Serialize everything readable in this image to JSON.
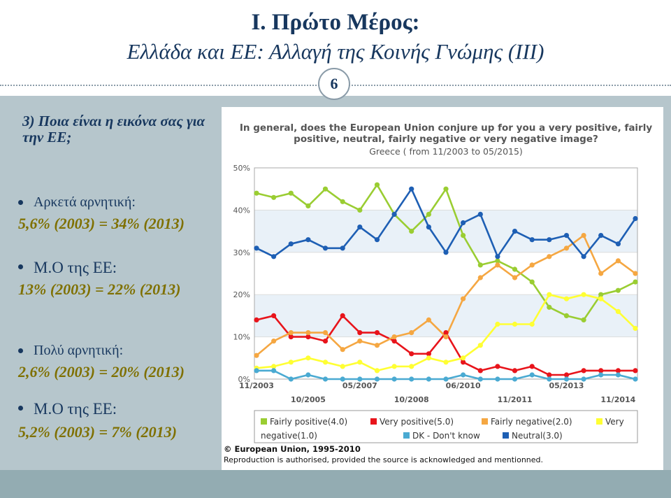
{
  "slide": {
    "title": "Ι. Πρώτο Μέρος:",
    "subtitle": "Ελλάδα και ΕΕ: Αλλαγή της Κοινής Γνώμης (ΙΙΙ)",
    "page_number": "6",
    "question": "3) Ποια είναι η εικόνα σας για την ΕΕ;",
    "items": [
      {
        "label": "Αρκετά αρνητική:",
        "value": "5,6% (2003) =  34% (2013)"
      },
      {
        "label": "Μ.Ο  της ΕΕ:",
        "value": "13% (2003) = 22% (2013)"
      },
      {
        "label": "Πολύ αρνητική:",
        "value": "2,6% (2003) = 20% (2013)"
      },
      {
        "label": "Μ.Ο  της ΕΕ:",
        "value": "5,2%  (2003) = 7% (2013)"
      }
    ],
    "copyright": "© European Union, 1995-2010",
    "reproduction": "Reproduction is authorised, provided the source is acknowledged and mentionned."
  },
  "chart_data": {
    "type": "line",
    "title": "In general, does the European Union conjure up for you a very positive, fairly positive, neutral, fairly negative or very negative image?",
    "title_lines": [
      "In general, does the European Union conjure up for you a very positive, fairly",
      "positive, neutral, fairly negative or very negative image?"
    ],
    "subtitle": "Greece ( from 11/2003 to 05/2015)",
    "ylim": [
      0,
      50
    ],
    "yticks": [
      "0%",
      "10%",
      "20%",
      "30%",
      "40%",
      "50%"
    ],
    "xticks_top": [
      "11/2003",
      "05/2007",
      "06/2010",
      "05/2013"
    ],
    "xticks_bottom": [
      "10/2005",
      "10/2008",
      "11/2011",
      "11/2014"
    ],
    "grid": true,
    "legend_position": "bottom",
    "series": [
      {
        "name": "Fairly positive(4.0)",
        "legend_label": "Fairly positive(4.0)",
        "color": "#9acd32",
        "values": [
          44,
          43,
          44,
          41,
          45,
          42,
          40,
          46,
          39,
          35,
          39,
          45,
          34,
          27,
          28,
          26,
          23,
          17,
          15,
          14,
          20,
          21,
          23
        ]
      },
      {
        "name": "Very positive(5.0)",
        "legend_label": "Very positive(5.0)",
        "color": "#e8141b",
        "values": [
          14,
          15,
          10,
          10,
          9,
          15,
          11,
          11,
          9,
          6,
          6,
          11,
          4,
          2,
          3,
          2,
          3,
          1,
          1,
          2,
          2,
          2,
          2
        ]
      },
      {
        "name": "Fairly negative(2.0)",
        "legend_label": "Fairly negative(2.0)",
        "color": "#f5a742",
        "values": [
          5.6,
          9,
          11,
          11,
          11,
          7,
          9,
          8,
          10,
          11,
          14,
          10,
          19,
          24,
          27,
          24,
          27,
          29,
          31,
          34,
          25,
          28,
          25
        ]
      },
      {
        "name": "Very negative(1.0)",
        "legend_label_a": "Very",
        "legend_label_b": "negative(1.0)",
        "color": "#ffff33",
        "values": [
          2.6,
          3,
          4,
          5,
          4,
          3,
          4,
          2,
          3,
          3,
          5,
          4,
          5,
          8,
          13,
          13,
          13,
          20,
          19,
          20,
          19,
          16,
          12
        ]
      },
      {
        "name": "DK - Don't know",
        "legend_label": "DK - Don't know",
        "color": "#4aaad2",
        "values": [
          2,
          2,
          0,
          1,
          0,
          0,
          0,
          0,
          0,
          0,
          0,
          0,
          1,
          0,
          0,
          0,
          1,
          0,
          0,
          0,
          1,
          1,
          0
        ]
      },
      {
        "name": "Neutral(3.0)",
        "legend_label": "Neutral(3.0)",
        "color": "#1e5fb4",
        "values": [
          31,
          29,
          32,
          33,
          31,
          31,
          36,
          33,
          39,
          45,
          36,
          30,
          37,
          39,
          29,
          35,
          33,
          33,
          34,
          29,
          34,
          32,
          38
        ]
      }
    ]
  }
}
